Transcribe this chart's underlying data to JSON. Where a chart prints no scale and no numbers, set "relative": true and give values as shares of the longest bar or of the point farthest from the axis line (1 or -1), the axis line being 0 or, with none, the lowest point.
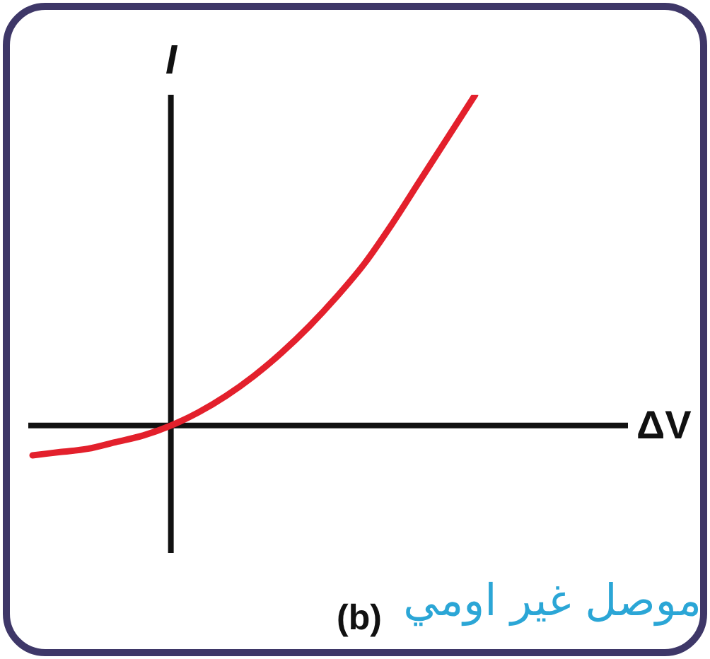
{
  "chart_data": {
    "type": "line",
    "relative": true,
    "categories": [
      null,
      null,
      null,
      null,
      null,
      null,
      null,
      null,
      null,
      null,
      null,
      null,
      null,
      null,
      null,
      null,
      null
    ],
    "values": [
      -0.09,
      -0.08,
      -0.07,
      -0.05,
      -0.03,
      0,
      0.04,
      0.09,
      0.15,
      0.22,
      0.3,
      0.39,
      0.49,
      0.61,
      0.74,
      0.87,
      1
    ],
    "color": "#e3202c",
    "marker": "none",
    "line_style": "solid",
    "xlabel": "ΔV",
    "ylabel": "I",
    "annotations": [
      "(b)",
      "موصل غير اومي"
    ]
  }
}
